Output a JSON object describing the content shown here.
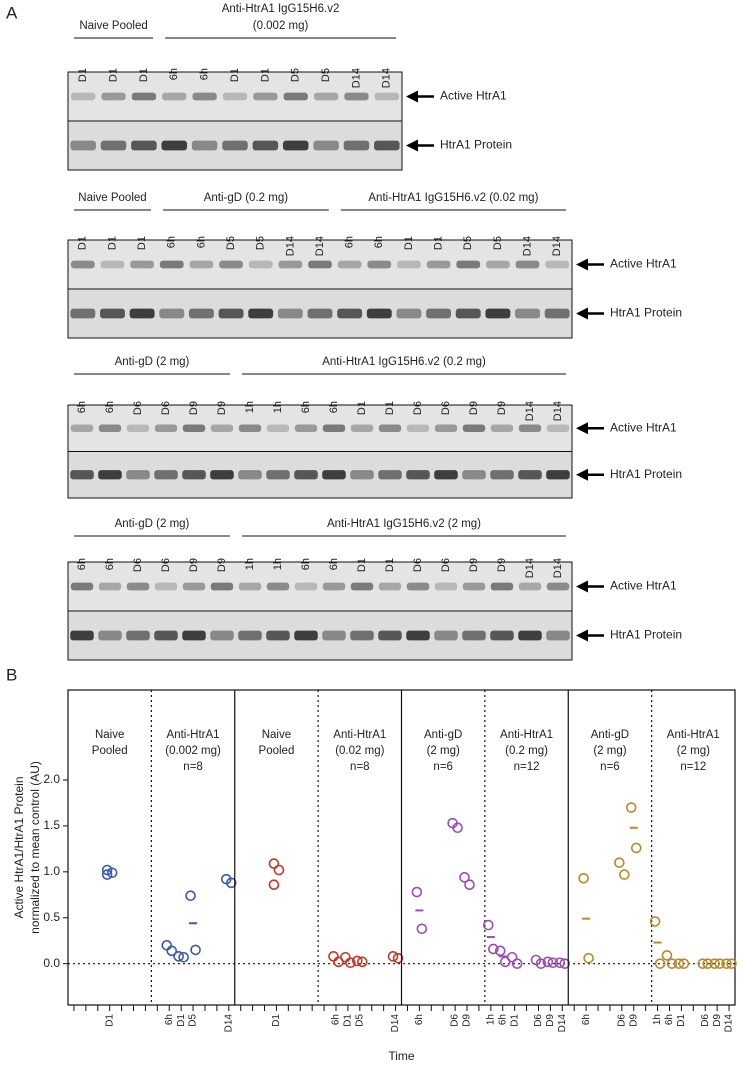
{
  "panel_labels": [
    "A",
    "B"
  ],
  "blots": [
    {
      "groups": [
        {
          "lines": [
            "Naive Pooled"
          ],
          "lanes": [
            "D1",
            "D1",
            "D1"
          ]
        },
        {
          "lines": [
            "Anti-HtrA1 IgG15H6.v2",
            "(0.002 mg)"
          ],
          "lanes": [
            "6h",
            "6h",
            "D1",
            "D1",
            "D5",
            "D5",
            "D14",
            "D14"
          ]
        }
      ],
      "bands": [
        "Active HtrA1",
        "HtrA1 Protein"
      ]
    },
    {
      "groups": [
        {
          "lines": [
            "Naive Pooled"
          ],
          "lanes": [
            "D1",
            "D1",
            "D1"
          ]
        },
        {
          "lines": [
            "Anti-gD (0.2 mg)"
          ],
          "lanes": [
            "6h",
            "6h",
            "D5",
            "D5",
            "D14",
            "D14"
          ]
        },
        {
          "lines": [
            "Anti-HtrA1 IgG15H6.v2 (0.02 mg)"
          ],
          "lanes": [
            "6h",
            "6h",
            "D1",
            "D1",
            "D5",
            "D5",
            "D14",
            "D14"
          ]
        }
      ],
      "bands": [
        "Active HtrA1",
        "HtrA1 Protein"
      ]
    },
    {
      "groups": [
        {
          "lines": [
            "Anti-gD (2 mg)"
          ],
          "lanes": [
            "6h",
            "6h",
            "D6",
            "D6",
            "D9",
            "D9"
          ]
        },
        {
          "lines": [
            "Anti-HtrA1 IgG15H6.v2 (0.2 mg)"
          ],
          "lanes": [
            "1h",
            "1h",
            "6h",
            "6h",
            "D1",
            "D1",
            "D6",
            "D6",
            "D9",
            "D9",
            "D14",
            "D14"
          ]
        }
      ],
      "bands": [
        "Active HtrA1",
        "HtrA1 Protein"
      ]
    },
    {
      "groups": [
        {
          "lines": [
            "Anti-gD (2 mg)"
          ],
          "lanes": [
            "6h",
            "6h",
            "D6",
            "D6",
            "D9",
            "D9"
          ]
        },
        {
          "lines": [
            "Anti-HtrA1 IgG15H6.v2 (2 mg)"
          ],
          "lanes": [
            "1h",
            "1h",
            "6h",
            "6h",
            "D1",
            "D1",
            "D6",
            "D6",
            "D9",
            "D9",
            "D14",
            "D14"
          ]
        }
      ],
      "bands": [
        "Active HtrA1",
        "HtrA1 Protein"
      ]
    }
  ],
  "chart_data": {
    "type": "scatter",
    "y_label": [
      "Active HtrA1/HtrA1 Protein",
      "normalized to mean control (AU)"
    ],
    "x_label": "Time",
    "ylim": [
      -0.45,
      2.98
    ],
    "yticks": [
      {
        "value": 0,
        "label": "0.0"
      },
      0.5,
      {
        "value": 1,
        "label": "1.0"
      },
      1.5,
      {
        "value": 2,
        "label": "2.0"
      }
    ],
    "reference_line": 0,
    "groups": [
      {
        "header": [
          "Naive",
          "Pooled"
        ],
        "color": "#3a5ba8",
        "ticks": [
          null,
          null,
          null,
          "D1",
          null,
          null,
          null
        ],
        "x": [
          3,
          3,
          3
        ],
        "values": [
          1.02,
          0.99,
          0.97
        ],
        "mean_x": [],
        "means": []
      },
      {
        "header": [
          "Anti-HtrA1",
          "(0.002 mg)",
          "n=8"
        ],
        "color": "#3a5ba8",
        "ticks": [
          null,
          "6h",
          "D1",
          "D5",
          null,
          null,
          "D14"
        ],
        "x": [
          1,
          1,
          2,
          2,
          3,
          3,
          6,
          6
        ],
        "values": [
          0.2,
          0.14,
          0.08,
          0.07,
          0.74,
          0.15,
          0.92,
          0.88
        ],
        "mean_x": [
          3
        ],
        "means": [
          0.44
        ]
      },
      {
        "header": [
          "Naive",
          "Pooled"
        ],
        "color": "#c0392b",
        "ticks": [
          null,
          null,
          null,
          "D1",
          null,
          null,
          null
        ],
        "x": [
          3,
          3,
          3
        ],
        "values": [
          1.09,
          1.02,
          0.86
        ],
        "mean_x": [],
        "means": []
      },
      {
        "header": [
          "Anti-HtrA1",
          "(0.02 mg)",
          "n=8"
        ],
        "color": "#c0392b",
        "ticks": [
          null,
          "6h",
          "D1",
          "D5",
          null,
          null,
          "D14"
        ],
        "x": [
          1,
          1,
          2,
          2,
          3,
          3,
          6,
          6
        ],
        "values": [
          0.08,
          0.02,
          0.07,
          0.01,
          0.03,
          0.02,
          0.08,
          0.06
        ],
        "mean_x": [],
        "means": []
      },
      {
        "header": [
          "Anti-gD",
          "(2 mg)",
          "n=6"
        ],
        "color": "#9a4db3",
        "ticks": [
          null,
          "6h",
          null,
          null,
          "D6",
          "D9",
          null
        ],
        "x": [
          1,
          1,
          4,
          4,
          5,
          5
        ],
        "values": [
          0.78,
          0.38,
          1.53,
          1.48,
          0.94,
          0.86
        ],
        "mean_x": [
          1
        ],
        "means": [
          0.58
        ]
      },
      {
        "header": [
          "Anti-HtrA1",
          "(0.2 mg)",
          "n=12"
        ],
        "color": "#9a4db3",
        "ticks": [
          "1h",
          "6h",
          "D1",
          null,
          "D6",
          "D9",
          "D14"
        ],
        "x": [
          0,
          0,
          1,
          1,
          2,
          2,
          4,
          4,
          5,
          5,
          6,
          6
        ],
        "values": [
          0.42,
          0.16,
          0.14,
          0.02,
          0.07,
          0.0,
          0.04,
          0.0,
          0.02,
          0.01,
          0.01,
          0.0
        ],
        "mean_x": [
          0,
          1
        ],
        "means": [
          0.29,
          0.08
        ]
      },
      {
        "header": [
          "Anti-gD",
          "(2 mg)",
          "n=6"
        ],
        "color": "#b88a2e",
        "ticks": [
          null,
          "6h",
          null,
          null,
          "D6",
          "D9",
          null
        ],
        "x": [
          1,
          1,
          4,
          4,
          5,
          5
        ],
        "values": [
          0.93,
          0.06,
          1.1,
          0.97,
          1.7,
          1.26
        ],
        "mean_x": [
          1,
          5
        ],
        "means": [
          0.49,
          1.48
        ]
      },
      {
        "header": [
          "Anti-HtrA1",
          "(2 mg)",
          "n=12"
        ],
        "color": "#b88a2e",
        "ticks": [
          "1h",
          "6h",
          "D1",
          null,
          "D6",
          "D9",
          "D14"
        ],
        "x": [
          0,
          0,
          1,
          1,
          2,
          2,
          4,
          4,
          5,
          5,
          6,
          6
        ],
        "values": [
          0.46,
          0.0,
          0.09,
          0.0,
          0.0,
          0.0,
          0.0,
          0.0,
          0.0,
          0.0,
          0.0,
          0.0
        ],
        "mean_x": [
          0
        ],
        "means": [
          0.23
        ]
      }
    ]
  }
}
